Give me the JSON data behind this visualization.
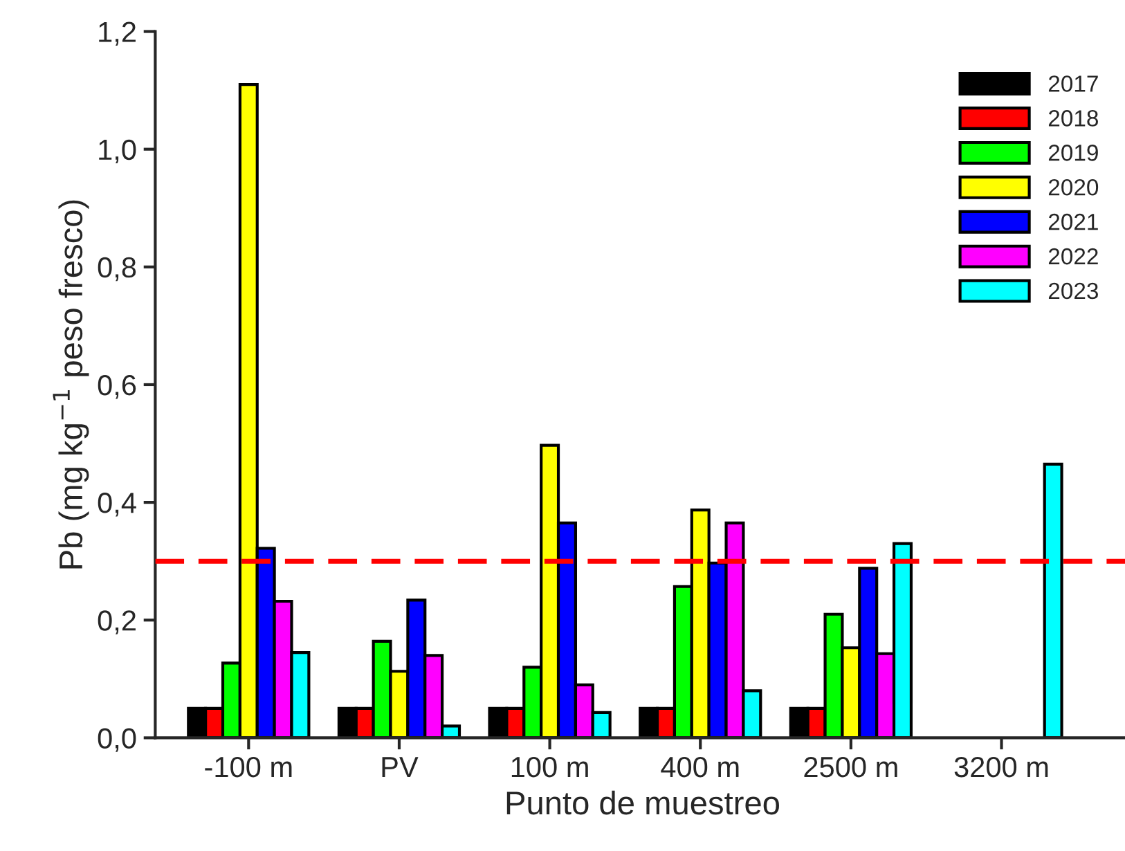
{
  "chart_data": {
    "type": "bar",
    "xlabel": "Punto de muestreo",
    "ylabel": "Pb (mg kg$^{−1}$ peso fresco)",
    "categories": [
      "-100 m",
      "PV",
      "100 m",
      "400 m",
      "2500 m",
      "3200 m"
    ],
    "series": [
      {
        "name": "2017",
        "color": "#000000",
        "values": [
          0.05,
          0.05,
          0.05,
          0.05,
          0.05,
          null
        ]
      },
      {
        "name": "2018",
        "color": "#ff0000",
        "values": [
          0.05,
          0.05,
          0.05,
          0.05,
          0.05,
          null
        ]
      },
      {
        "name": "2019",
        "color": "#00ff00",
        "values": [
          0.127,
          0.164,
          0.12,
          0.257,
          0.21,
          null
        ]
      },
      {
        "name": "2020",
        "color": "#ffff00",
        "values": [
          1.11,
          0.113,
          0.497,
          0.387,
          0.153,
          null
        ]
      },
      {
        "name": "2021",
        "color": "#0000ff",
        "values": [
          0.322,
          0.234,
          0.365,
          0.297,
          0.288,
          null
        ]
      },
      {
        "name": "2022",
        "color": "#ff00ff",
        "values": [
          0.232,
          0.14,
          0.09,
          0.365,
          0.143,
          null
        ]
      },
      {
        "name": "2023",
        "color": "#00ffff",
        "values": [
          0.145,
          0.02,
          0.043,
          0.08,
          0.33,
          0.465
        ]
      }
    ],
    "ylim": [
      0,
      1.2
    ],
    "yticks": [
      {
        "value": 0,
        "label": "0,0"
      },
      {
        "value": 0.2,
        "label": "0,2"
      },
      {
        "value": 0.4,
        "label": "0,4"
      },
      {
        "value": 0.6,
        "label": "0,6"
      },
      {
        "value": 0.8,
        "label": "0,8"
      },
      {
        "value": 1.0,
        "label": "1,0"
      },
      {
        "value": 1.2,
        "label": "1,2"
      }
    ],
    "ref_lines": [
      {
        "axis": "y",
        "value": 0.3,
        "color": "#ff0000",
        "line_style": "dashed"
      }
    ],
    "grid": false,
    "legend": "top right"
  }
}
